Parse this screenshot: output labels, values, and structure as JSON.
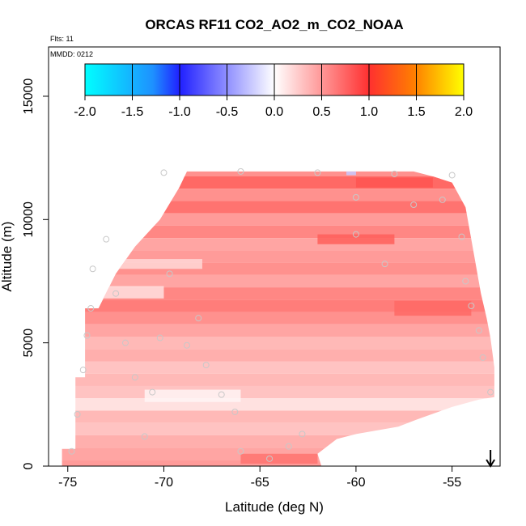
{
  "chart_data": {
    "type": "heatmap",
    "title": "ORCAS RF11 CO2_AO2_m_CO2_NOAA",
    "annotation_flights": "Flts: 11",
    "annotation_date": "MMDD: 0212",
    "xlabel": "Latitude (deg N)",
    "ylabel": "Altitude (m)",
    "xlim": [
      -76,
      -52.5
    ],
    "ylim": [
      0,
      17000
    ],
    "x_ticks": [
      -75,
      -70,
      -65,
      -60,
      -55
    ],
    "x_tick_labels": [
      "-75",
      "-70",
      "-65",
      "-60",
      "-55"
    ],
    "y_ticks": [
      0,
      5000,
      10000,
      15000
    ],
    "y_tick_labels": [
      "0",
      "5000",
      "10000",
      "15000"
    ],
    "colorbar": {
      "range": [
        -2.0,
        2.0
      ],
      "ticks": [
        -2.0,
        -1.5,
        -1.0,
        -0.5,
        0.0,
        0.5,
        1.0,
        1.5,
        2.0
      ],
      "tick_labels": [
        "-2.0",
        "-1.5",
        "-1.0",
        "-0.5",
        "0.0",
        "0.5",
        "1.0",
        "1.5",
        "2.0"
      ],
      "colors": [
        "#00FFFF",
        "#1E90FF",
        "#2020FF",
        "#FFFFFF",
        "#FF3030",
        "#FF7F00",
        "#FFFF00"
      ]
    },
    "arrow_marker_latitude": -53,
    "profile_rows": [
      {
        "alt": 11900,
        "value": 0.55
      },
      {
        "alt": 11500,
        "value": 0.75
      },
      {
        "alt": 11000,
        "value": 0.55
      },
      {
        "alt": 10500,
        "value": 0.7
      },
      {
        "alt": 10000,
        "value": 0.5
      },
      {
        "alt": 9500,
        "value": 0.6
      },
      {
        "alt": 9000,
        "value": 0.45
      },
      {
        "alt": 8500,
        "value": 0.5
      },
      {
        "alt": 8000,
        "value": 0.55
      },
      {
        "alt": 7500,
        "value": 0.45
      },
      {
        "alt": 7000,
        "value": 0.6
      },
      {
        "alt": 6500,
        "value": 0.65
      },
      {
        "alt": 6000,
        "value": 0.55
      },
      {
        "alt": 5500,
        "value": 0.45
      },
      {
        "alt": 5000,
        "value": 0.35
      },
      {
        "alt": 4500,
        "value": 0.4
      },
      {
        "alt": 4000,
        "value": 0.3
      },
      {
        "alt": 3500,
        "value": 0.35
      },
      {
        "alt": 3000,
        "value": 0.3
      },
      {
        "alt": 2500,
        "value": 0.15
      },
      {
        "alt": 2000,
        "value": 0.35
      },
      {
        "alt": 1500,
        "value": 0.3
      },
      {
        "alt": 1000,
        "value": 0.4
      },
      {
        "alt": 500,
        "value": 0.45
      },
      {
        "alt": 0,
        "value": 0.5
      }
    ],
    "sample_points": [
      {
        "lat": -74.8,
        "alt": 600
      },
      {
        "lat": -74.5,
        "alt": 2100
      },
      {
        "lat": -74.2,
        "alt": 3900
      },
      {
        "lat": -74.0,
        "alt": 5300
      },
      {
        "lat": -73.8,
        "alt": 6400
      },
      {
        "lat": -73.7,
        "alt": 8000
      },
      {
        "lat": -73.0,
        "alt": 9200
      },
      {
        "lat": -72.5,
        "alt": 7000
      },
      {
        "lat": -72.0,
        "alt": 5000
      },
      {
        "lat": -71.5,
        "alt": 3600
      },
      {
        "lat": -71.0,
        "alt": 1200
      },
      {
        "lat": -70.6,
        "alt": 3000
      },
      {
        "lat": -70.2,
        "alt": 5200
      },
      {
        "lat": -69.7,
        "alt": 7800
      },
      {
        "lat": -68.8,
        "alt": 4900
      },
      {
        "lat": -68.2,
        "alt": 6000
      },
      {
        "lat": -67.8,
        "alt": 4100
      },
      {
        "lat": -67.0,
        "alt": 2900
      },
      {
        "lat": -66.3,
        "alt": 2200
      },
      {
        "lat": -66.0,
        "alt": 600
      },
      {
        "lat": -64.5,
        "alt": 300
      },
      {
        "lat": -63.5,
        "alt": 800
      },
      {
        "lat": -62.8,
        "alt": 1300
      },
      {
        "lat": -60.0,
        "alt": 10900
      },
      {
        "lat": -60.0,
        "alt": 9400
      },
      {
        "lat": -58.5,
        "alt": 8200
      },
      {
        "lat": -57.0,
        "alt": 10600
      },
      {
        "lat": -55.5,
        "alt": 10800
      },
      {
        "lat": -54.5,
        "alt": 9300
      },
      {
        "lat": -54.3,
        "alt": 7500
      },
      {
        "lat": -54.0,
        "alt": 6500
      },
      {
        "lat": -53.6,
        "alt": 5500
      },
      {
        "lat": -53.4,
        "alt": 4400
      },
      {
        "lat": -53.0,
        "alt": 3000
      },
      {
        "lat": -70.0,
        "alt": 11900
      },
      {
        "lat": -66.0,
        "alt": 11950
      },
      {
        "lat": -62.0,
        "alt": 11900
      },
      {
        "lat": -58.0,
        "alt": 11850
      },
      {
        "lat": -55.0,
        "alt": 11800
      }
    ]
  }
}
